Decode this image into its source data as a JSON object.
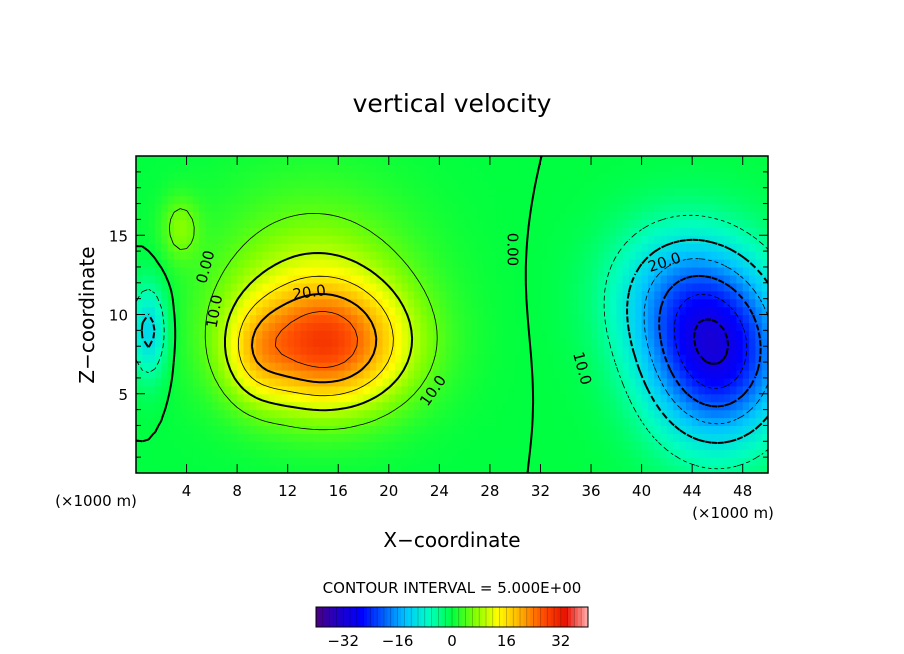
{
  "chart_data": {
    "type": "heatmap",
    "title": "vertical velocity",
    "xlabel": "X−coordinate",
    "ylabel": "Z−coordinate",
    "x_unit_label": "(×1000 m)",
    "z_unit_label": "(×1000 m)",
    "xlim": [
      0,
      50
    ],
    "ylim": [
      0,
      20
    ],
    "x_ticks": [
      4,
      8,
      12,
      16,
      20,
      24,
      28,
      32,
      36,
      40,
      44,
      48
    ],
    "y_ticks": [
      5,
      10,
      15
    ],
    "contour_interval_text": "CONTOUR INTERVAL = 5.000E+00",
    "contour_labels": [
      {
        "text": "0.00",
        "x": 5.5,
        "z": 13.0,
        "angle": -75
      },
      {
        "text": "10.0",
        "x": 6.2,
        "z": 10.2,
        "angle": -80
      },
      {
        "text": "20.0",
        "x": 13.7,
        "z": 11.4,
        "angle": -8
      },
      {
        "text": "10.0",
        "x": 23.5,
        "z": 5.2,
        "angle": -55
      },
      {
        "text": "0.00",
        "x": 29.8,
        "z": 14.1,
        "angle": 90
      },
      {
        "text": "20.0",
        "x": 41.8,
        "z": 13.3,
        "angle": -18
      },
      {
        "text": "10.0",
        "x": 35.3,
        "z": 6.6,
        "angle": 75
      }
    ],
    "cells": [
      {
        "x": 15.0,
        "z": 8.0,
        "sx": 6.5,
        "sz": 4.0,
        "a": 24
      },
      {
        "x": 9.5,
        "z": 7.5,
        "sx": 2.5,
        "sz": 3.0,
        "a": 6
      },
      {
        "x": 14.0,
        "z": 12.0,
        "sx": 8.0,
        "sz": 6.0,
        "a": 8
      },
      {
        "x": 46.0,
        "z": 7.5,
        "sx": 5.5,
        "sz": 5.5,
        "a": -28
      },
      {
        "x": 42.5,
        "z": 11.5,
        "sx": 5.5,
        "sz": 4.5,
        "a": -10
      },
      {
        "x": 3.5,
        "z": 15.5,
        "sx": 1.5,
        "sz": 2.0,
        "a": 6
      },
      {
        "x": 1.0,
        "z": 9.0,
        "sx": 1.5,
        "sz": 3.0,
        "a": -12
      }
    ],
    "colorbar": {
      "range": [
        -40,
        40
      ],
      "ticks": [
        -32,
        -16,
        0,
        16,
        32
      ],
      "tick_labels": [
        "−32",
        "−16",
        "0",
        "16",
        "32"
      ],
      "colors": [
        "#4b0082",
        "#1e00c8",
        "#0000ff",
        "#0060ff",
        "#00c8ff",
        "#00ffc0",
        "#00ff40",
        "#80ff00",
        "#ffff00",
        "#ffb000",
        "#ff5000",
        "#e81000",
        "#ffb0b0"
      ]
    },
    "grid": false
  }
}
